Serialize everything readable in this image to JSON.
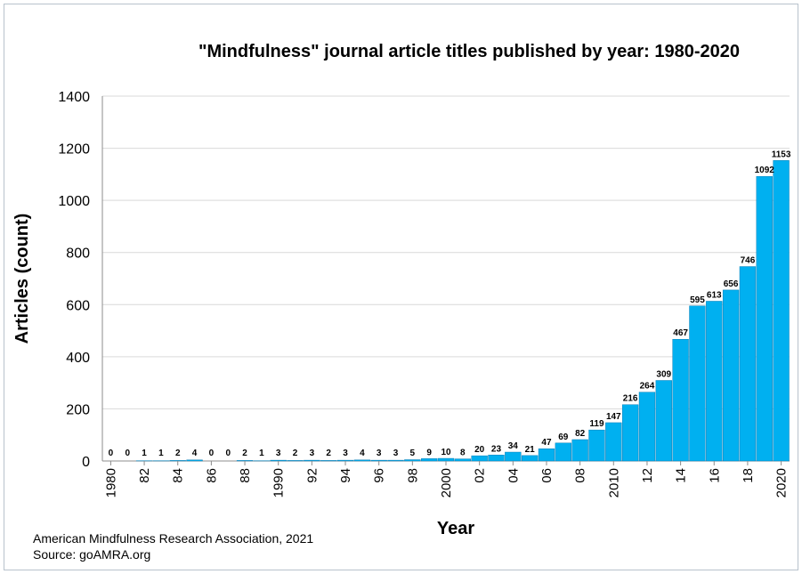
{
  "chart_data": {
    "type": "bar",
    "title": "\"Mindfulness\" journal article titles published by year: 1980-2020",
    "xlabel": "Year",
    "ylabel": "Articles (count)",
    "ylim": [
      0,
      1400
    ],
    "yticks": [
      "0",
      "200",
      "400",
      "600",
      "800",
      "1000",
      "1200",
      "1400"
    ],
    "grid": true,
    "legend": "none",
    "bar_color": "#00b0f0",
    "categories": [
      "1980",
      "81",
      "82",
      "83",
      "84",
      "85",
      "86",
      "87",
      "88",
      "89",
      "1990",
      "91",
      "92",
      "93",
      "94",
      "95",
      "96",
      "97",
      "98",
      "99",
      "2000",
      "01",
      "02",
      "03",
      "04",
      "05",
      "06",
      "07",
      "08",
      "09",
      "2010",
      "11",
      "12",
      "13",
      "14",
      "15",
      "16",
      "17",
      "18",
      "19",
      "2020"
    ],
    "tick_labels": [
      "1980",
      "",
      "82",
      "",
      "84",
      "",
      "86",
      "",
      "88",
      "",
      "1990",
      "",
      "92",
      "",
      "94",
      "",
      "96",
      "",
      "98",
      "",
      "2000",
      "",
      "02",
      "",
      "04",
      "",
      "06",
      "",
      "08",
      "",
      "2010",
      "",
      "12",
      "",
      "14",
      "",
      "16",
      "",
      "18",
      "",
      "2020"
    ],
    "values": [
      0,
      0,
      1,
      1,
      2,
      4,
      0,
      0,
      2,
      1,
      3,
      2,
      3,
      2,
      3,
      4,
      3,
      3,
      5,
      9,
      10,
      8,
      20,
      23,
      34,
      21,
      47,
      69,
      82,
      119,
      147,
      216,
      264,
      309,
      467,
      595,
      613,
      656,
      746,
      1092,
      1153
    ]
  },
  "footer": {
    "line1": "American Mindfulness Research Association, 2021",
    "line2": "Source: goAMRA.org"
  }
}
